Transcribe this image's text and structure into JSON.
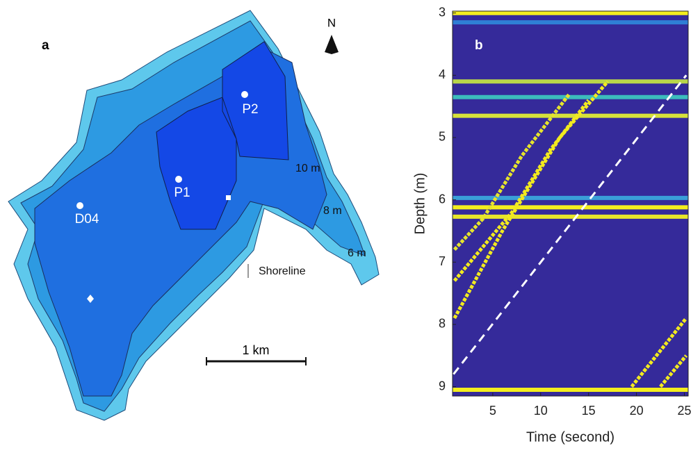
{
  "map": {
    "label": "a",
    "north": "N",
    "points": [
      {
        "label": "P2"
      },
      {
        "label": "P1"
      },
      {
        "label": "D04"
      }
    ],
    "contours": [
      {
        "label": "10 m"
      },
      {
        "label": "8 m"
      },
      {
        "label": "6 m"
      }
    ],
    "shoreline": "Shoreline",
    "scale": "1 km"
  },
  "chart_data": {
    "type": "heatmap",
    "label": "b",
    "xlabel": "Time (second)",
    "ylabel": "Depth (m)",
    "xlim": [
      0.8,
      25.4
    ],
    "ylim": [
      2.97,
      9.15
    ],
    "y_reversed": true,
    "xticks": [
      5,
      10,
      15,
      20,
      25
    ],
    "yticks": [
      3,
      4,
      5,
      6,
      7,
      8,
      9
    ],
    "background": "#352a9a",
    "bands": [
      {
        "depth": 3.0,
        "color": "#f4ee1e"
      },
      {
        "depth": 3.15,
        "color": "#2f7fd6"
      },
      {
        "depth": 4.1,
        "color": "#b9d64a"
      },
      {
        "depth": 4.35,
        "color": "#3cbcbc"
      },
      {
        "depth": 4.65,
        "color": "#d7e23a"
      },
      {
        "depth": 5.97,
        "color": "#3a9fd8"
      },
      {
        "depth": 6.12,
        "color": "#f4ee1e"
      },
      {
        "depth": 6.27,
        "color": "#e8e62a"
      },
      {
        "depth": 9.05,
        "color": "#f4ee1e"
      }
    ],
    "series": [
      {
        "color": "#f2ea1f",
        "x": [
          1,
          6,
          12,
          17
        ],
        "values": [
          7.9,
          6.5,
          5.0,
          4.1
        ]
      },
      {
        "color": "#f2ea1f",
        "x": [
          1,
          7,
          11,
          15
        ],
        "values": [
          7.3,
          6.2,
          5.2,
          4.4
        ]
      },
      {
        "color": "#e6e42c",
        "x": [
          1,
          4,
          8,
          13
        ],
        "values": [
          6.8,
          6.3,
          5.3,
          4.3
        ]
      },
      {
        "color": "#f2ea1f",
        "x": [
          19.5,
          25.2
        ],
        "values": [
          9.0,
          7.9
        ]
      },
      {
        "color": "#f2ea1f",
        "x": [
          22.5,
          25.2
        ],
        "values": [
          9.0,
          8.5
        ]
      }
    ],
    "reference": {
      "color": "#ffffff",
      "x": [
        0.9,
        25.2
      ],
      "values": [
        8.8,
        4.0
      ]
    }
  }
}
